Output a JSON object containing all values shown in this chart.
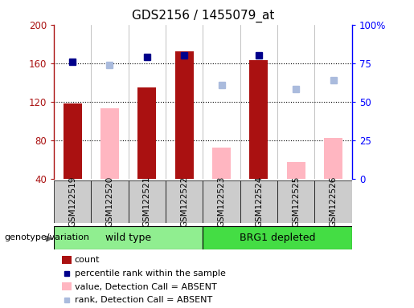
{
  "title": "GDS2156 / 1455079_at",
  "samples": [
    "GSM122519",
    "GSM122520",
    "GSM122521",
    "GSM122522",
    "GSM122523",
    "GSM122524",
    "GSM122525",
    "GSM122526"
  ],
  "count_values": [
    118,
    null,
    135,
    172,
    null,
    163,
    null,
    null
  ],
  "absent_value": [
    null,
    113,
    null,
    null,
    72,
    null,
    57,
    82
  ],
  "percentile_rank": [
    76,
    null,
    79,
    80,
    null,
    80,
    null,
    null
  ],
  "absent_rank": [
    null,
    74,
    null,
    null,
    61,
    null,
    58,
    64
  ],
  "ylim_left": [
    40,
    200
  ],
  "ylim_right": [
    0,
    100
  ],
  "yticks_left": [
    40,
    80,
    120,
    160,
    200
  ],
  "yticks_right": [
    0,
    25,
    50,
    75,
    100
  ],
  "yticklabels_right": [
    "0",
    "25",
    "50",
    "75",
    "100%"
  ],
  "color_count": "#AA1111",
  "color_percentile": "#00008B",
  "color_absent_value": "#FFB6C1",
  "color_absent_rank": "#AABBDD",
  "bar_width": 0.5,
  "wt_color": "#90EE90",
  "brg_color": "#44DD44",
  "tick_bg_color": "#CCCCCC",
  "legend_items": [
    "count",
    "percentile rank within the sample",
    "value, Detection Call = ABSENT",
    "rank, Detection Call = ABSENT"
  ]
}
